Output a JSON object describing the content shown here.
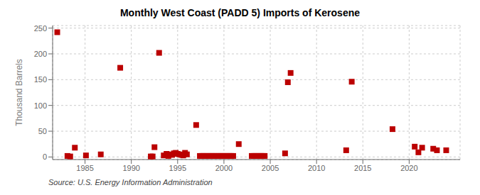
{
  "chart_data": {
    "type": "scatter",
    "title": "Monthly West Coast (PADD 5) Imports of Kerosene",
    "y_label": "Thousand Barrels",
    "annotations": [
      "Source: U.S. Energy Information Administration"
    ],
    "x": [
      1982.0,
      1983.1,
      1983.4,
      1983.9,
      1985.1,
      1986.7,
      1988.8,
      1992.1,
      1992.3,
      1992.5,
      1993.0,
      1993.5,
      1993.8,
      1994.0,
      1994.2,
      1994.4,
      1994.6,
      1994.8,
      1995.0,
      1995.2,
      1995.4,
      1995.6,
      1995.8,
      1996.0,
      1997.0,
      1997.4,
      1997.6,
      1997.8,
      1998.0,
      1998.2,
      1998.4,
      1998.6,
      1998.8,
      1999.0,
      1999.2,
      1999.4,
      1999.6,
      1999.8,
      2000.0,
      2000.2,
      2000.4,
      2000.6,
      2000.8,
      2001.0,
      2001.6,
      2003.0,
      2003.2,
      2003.4,
      2003.6,
      2003.8,
      2004.0,
      2004.2,
      2004.4,
      2006.6,
      2006.9,
      2007.2,
      2013.2,
      2013.8,
      2018.2,
      2020.6,
      2021.0,
      2021.4,
      2022.6,
      2023.0,
      2024.0
    ],
    "values": [
      242,
      2,
      1,
      18,
      3,
      5,
      173,
      1,
      1,
      19,
      202,
      3,
      6,
      2,
      5,
      4,
      7,
      8,
      6,
      5,
      4,
      3,
      8,
      5,
      62,
      2,
      2,
      2,
      2,
      2,
      2,
      2,
      2,
      2,
      2,
      2,
      2,
      2,
      2,
      2,
      2,
      2,
      2,
      2,
      25,
      2,
      2,
      2,
      2,
      2,
      2,
      2,
      2,
      7,
      145,
      163,
      13,
      146,
      54,
      20,
      9,
      18,
      16,
      13,
      13
    ],
    "color": "#bb0000",
    "marker": "square",
    "xlim": [
      1981.5,
      2025.5
    ],
    "ylim": [
      -5,
      255
    ],
    "xticks": [
      1985,
      1990,
      1995,
      2000,
      2005,
      2010,
      2015,
      2020
    ],
    "yticks": [
      0,
      50,
      100,
      150,
      200,
      250
    ],
    "grid": true
  }
}
